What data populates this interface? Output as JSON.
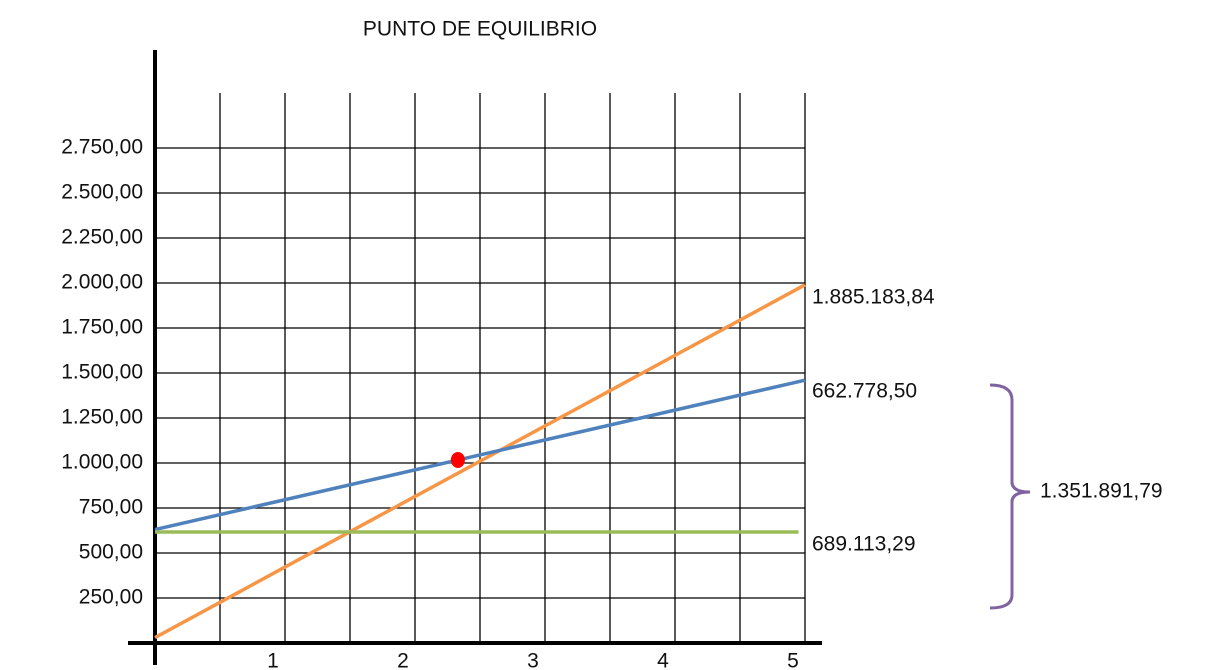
{
  "chart_data": {
    "type": "line",
    "title": "PUNTO DE EQUILIBRIO",
    "xlim": [
      0,
      5
    ],
    "xticks": [
      1,
      2,
      3,
      4,
      5
    ],
    "ylim": [
      0,
      3000
    ],
    "yticks": [
      {
        "value": 250,
        "label": "250,00"
      },
      {
        "value": 500,
        "label": "500,00"
      },
      {
        "value": 750,
        "label": "750,00"
      },
      {
        "value": 1000,
        "label": "1.000,00"
      },
      {
        "value": 1250,
        "label": "1.250,00"
      },
      {
        "value": 1500,
        "label": "1.500,00"
      },
      {
        "value": 1750,
        "label": "1.750,00"
      },
      {
        "value": 2000,
        "label": "2.000,00"
      },
      {
        "value": 2250,
        "label": "2.250,00"
      },
      {
        "value": 2500,
        "label": "2.500,00"
      },
      {
        "value": 2750,
        "label": "2.750,00"
      }
    ],
    "grid": true,
    "series": [
      {
        "color": "#f79646",
        "x": [
          0,
          5
        ],
        "values": [
          30,
          1990
        ]
      },
      {
        "color": "#4f81bd",
        "x": [
          0,
          5
        ],
        "values": [
          630,
          1460
        ]
      },
      {
        "color": "#9bbb59",
        "x": [
          0,
          4.95
        ],
        "values": [
          617,
          617
        ]
      }
    ],
    "marker": {
      "x": 2.33,
      "y": 1017,
      "color": "#ff0000"
    },
    "annotations": [
      "1.885.183,84",
      "662.778,50",
      "689.113,29",
      "1.351.891,79"
    ]
  }
}
